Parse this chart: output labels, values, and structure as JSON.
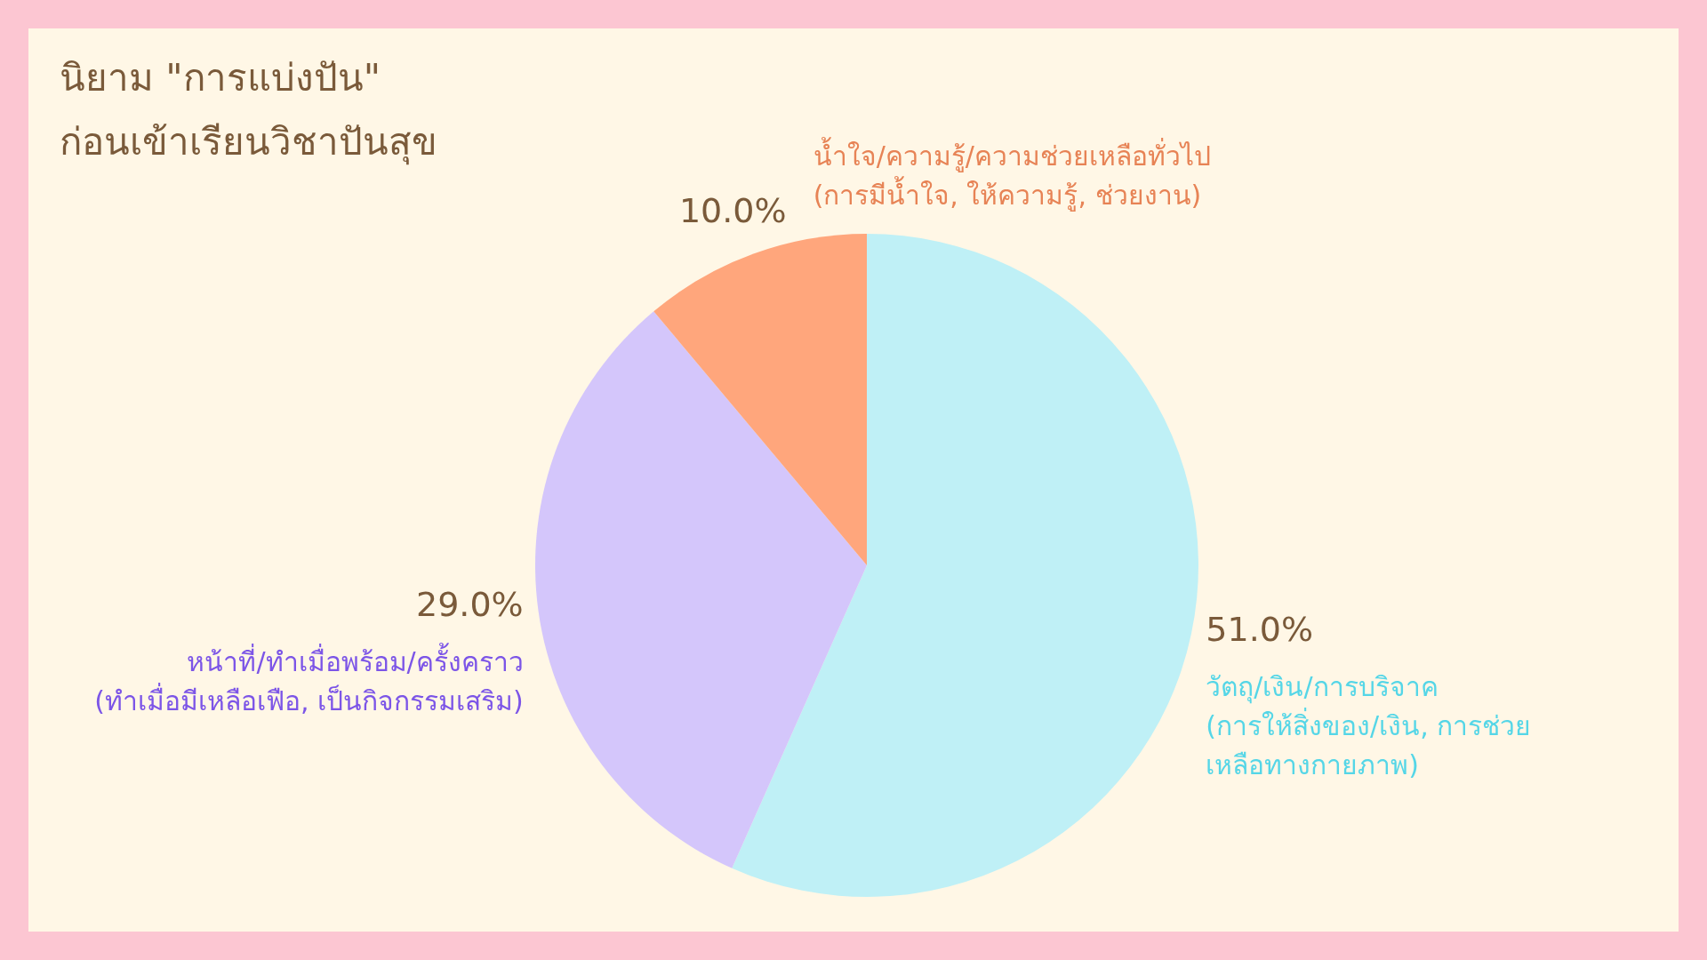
{
  "chart_data": {
    "type": "pie",
    "title": "นิยาม \"การแบ่งปัน\" ก่อนเข้าเรียนวิชาปันสุข",
    "categories": [
      "วัตถุ/เงิน/การบริจาค\n(การให้สิ่งของ/เงิน, การช่วย\nเหลือทางกายภาพ)",
      "หน้าที่/ทำเมื่อพร้อม/ครั้งคราว\n(ทำเมื่อมีเหลือเฟือ, เป็นกิจกรรมเสริม)",
      "น้ำใจ/ความรู้/ความช่วยเหลือทั่วไป\n(การมีน้ำใจ, ให้ความรู้, ช่วยงาน)"
    ],
    "values": [
      51,
      29,
      10
    ],
    "value_labels": [
      "51.0%",
      "29.0%",
      "10.0%"
    ],
    "colors": [
      "#bff0f6",
      "#d4c6fb",
      "#ffa67c"
    ]
  }
}
